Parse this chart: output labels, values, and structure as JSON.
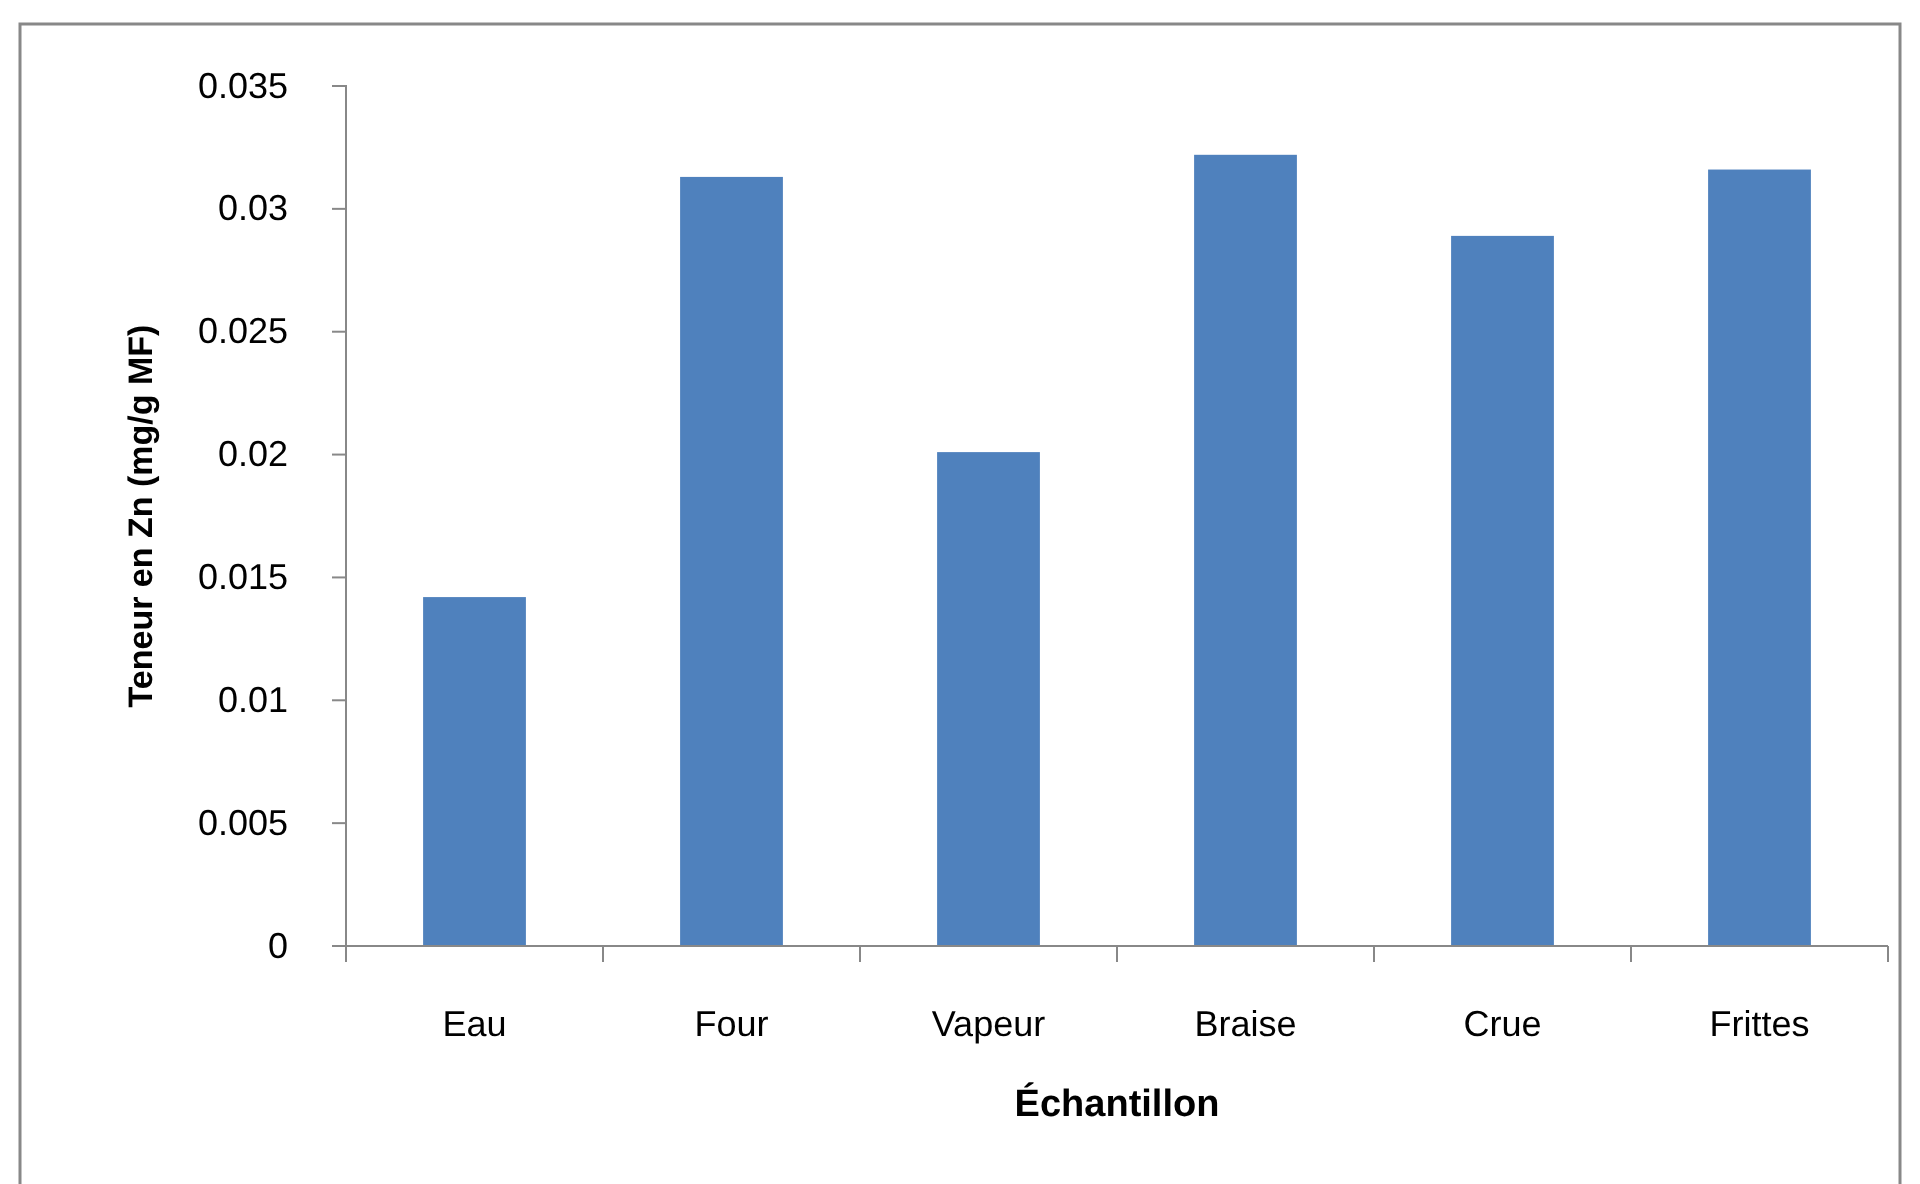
{
  "chart_data": {
    "type": "bar",
    "xlabel": "Échantillon",
    "ylabel": "Teneur en Zn (mg/g MF)",
    "categories": [
      "Eau",
      "Four",
      "Vapeur",
      "Braise",
      "Crue",
      "Frittes"
    ],
    "values": [
      0.0142,
      0.0313,
      0.0201,
      0.0322,
      0.0289,
      0.0316
    ],
    "color": "#4f81bd",
    "ylim": [
      0,
      0.035
    ],
    "yticks": [
      0,
      0.005,
      0.01,
      0.015,
      0.02,
      0.025,
      0.03,
      0.035
    ],
    "grid": false,
    "legend": false
  }
}
